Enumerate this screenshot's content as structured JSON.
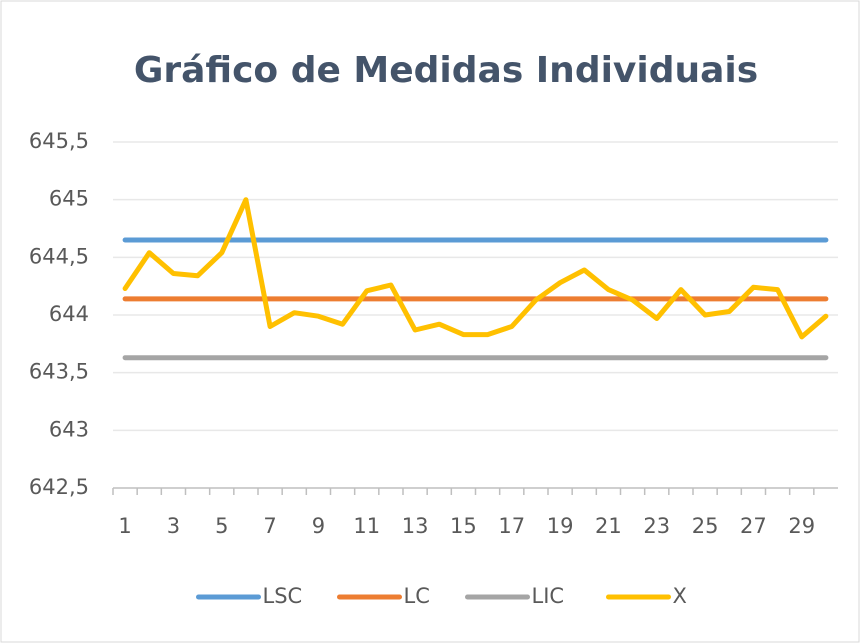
{
  "chart_data": {
    "type": "line",
    "title": "Gráfico de Medidas Individuais",
    "categories": [
      "1",
      null,
      "3",
      null,
      "5",
      null,
      "7",
      null,
      "9",
      null,
      "11",
      null,
      "13",
      null,
      "15",
      null,
      "17",
      null,
      "19",
      null,
      "21",
      null,
      "23",
      null,
      "25",
      null,
      "27",
      null,
      "29",
      null
    ],
    "series": [
      {
        "name": "LSC",
        "color": "#5b9bd5",
        "values": [
          644.65,
          644.65,
          644.65,
          644.65,
          644.65,
          644.65,
          644.65,
          644.65,
          644.65,
          644.65,
          644.65,
          644.65,
          644.65,
          644.65,
          644.65,
          644.65,
          644.65,
          644.65,
          644.65,
          644.65,
          644.65,
          644.65,
          644.65,
          644.65,
          644.65,
          644.65,
          644.65,
          644.65,
          644.65,
          644.65
        ]
      },
      {
        "name": "LC",
        "color": "#ed7d31",
        "values": [
          644.14,
          644.14,
          644.14,
          644.14,
          644.14,
          644.14,
          644.14,
          644.14,
          644.14,
          644.14,
          644.14,
          644.14,
          644.14,
          644.14,
          644.14,
          644.14,
          644.14,
          644.14,
          644.14,
          644.14,
          644.14,
          644.14,
          644.14,
          644.14,
          644.14,
          644.14,
          644.14,
          644.14,
          644.14,
          644.14
        ]
      },
      {
        "name": "LIC",
        "color": "#a5a5a5",
        "values": [
          643.63,
          643.63,
          643.63,
          643.63,
          643.63,
          643.63,
          643.63,
          643.63,
          643.63,
          643.63,
          643.63,
          643.63,
          643.63,
          643.63,
          643.63,
          643.63,
          643.63,
          643.63,
          643.63,
          643.63,
          643.63,
          643.63,
          643.63,
          643.63,
          643.63,
          643.63,
          643.63,
          643.63,
          643.63,
          643.63
        ]
      },
      {
        "name": "X",
        "color": "#ffc000",
        "values": [
          644.23,
          644.54,
          644.36,
          644.34,
          644.54,
          645.0,
          643.9,
          644.02,
          643.99,
          643.92,
          644.21,
          644.26,
          643.87,
          643.92,
          643.83,
          643.83,
          643.9,
          644.13,
          644.28,
          644.39,
          644.22,
          644.13,
          643.97,
          644.22,
          644.0,
          644.03,
          644.24,
          644.22,
          643.81,
          643.99
        ]
      }
    ],
    "ylim": [
      642.5,
      645.5
    ],
    "yticks": [
      {
        "value": 642.5,
        "label": "642,5"
      },
      643,
      {
        "value": 643.5,
        "label": "643,5"
      },
      644,
      {
        "value": 644.5,
        "label": "644,5"
      },
      645,
      {
        "value": 645.5,
        "label": "645,5"
      }
    ],
    "grid": true,
    "legend": "bottom"
  }
}
